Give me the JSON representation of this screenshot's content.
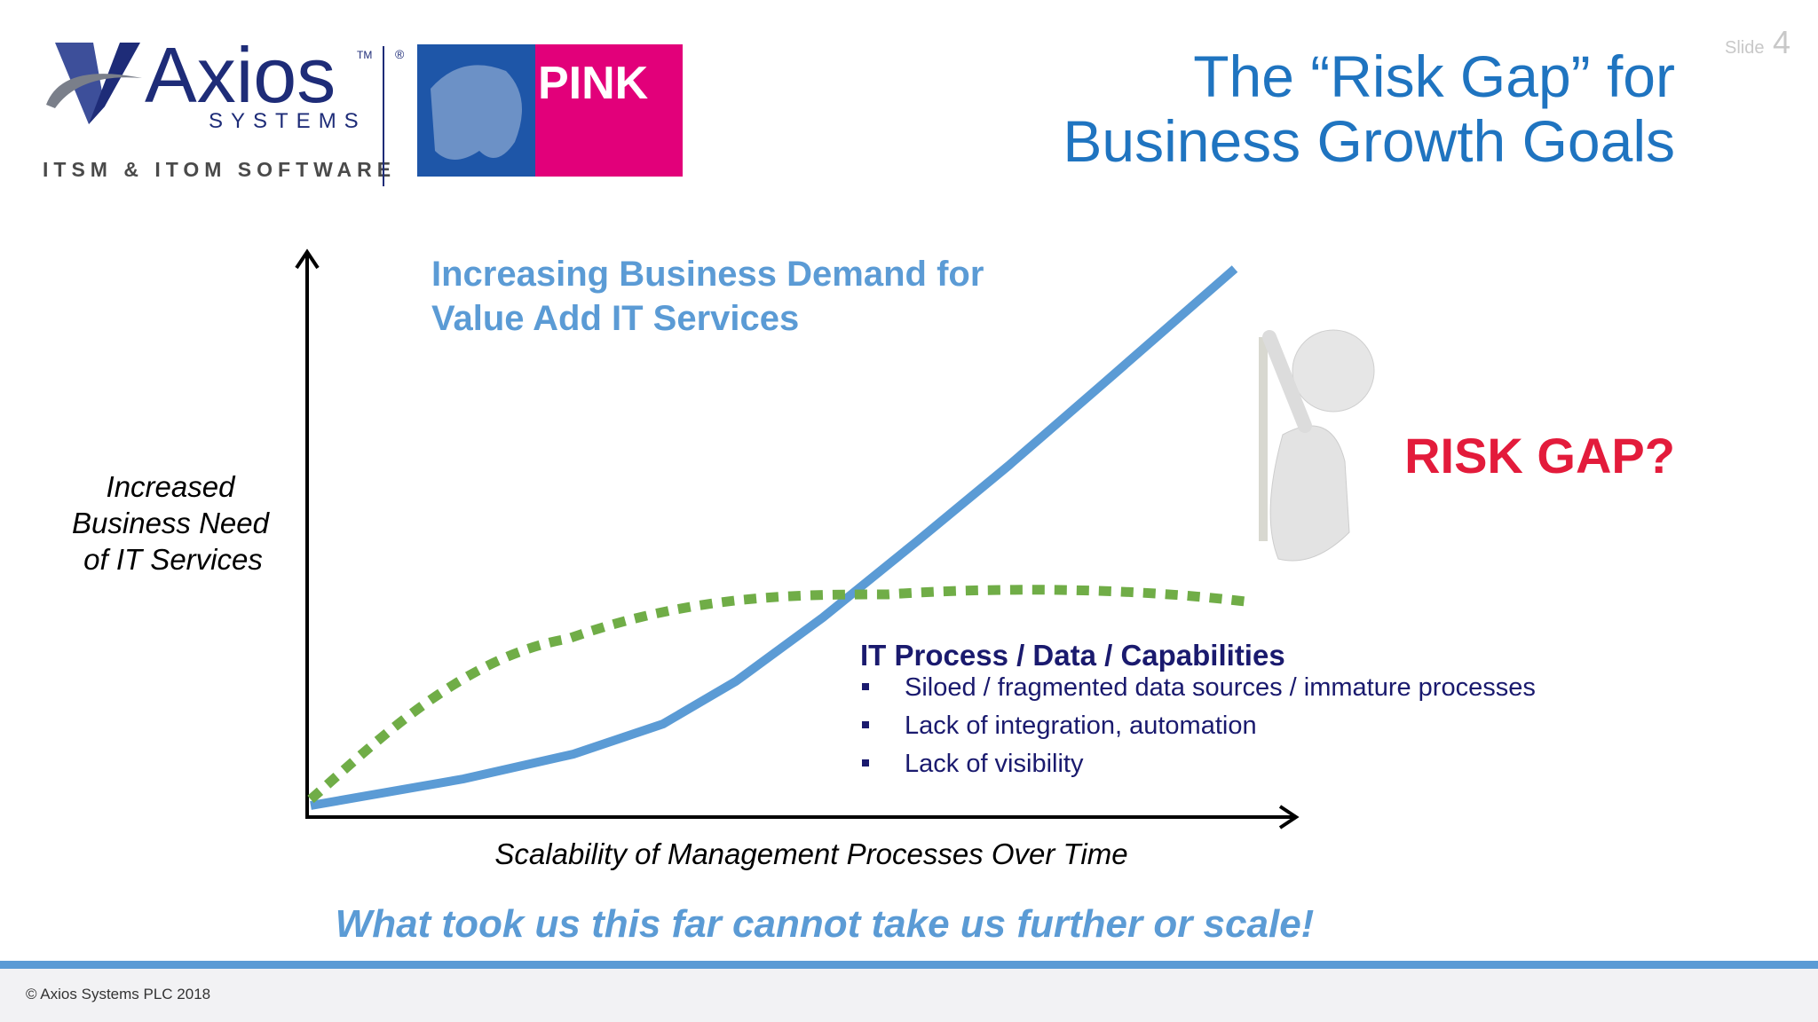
{
  "logo": {
    "name": "Axios",
    "trademark": "TM",
    "registered": "®",
    "sub": "SYSTEMS",
    "tagline": "ITSM & ITOM SOFTWARE",
    "partner": "PINK"
  },
  "slide": {
    "label": "Slide",
    "number": "4"
  },
  "title": {
    "line1": "The “Risk Gap” for",
    "line2": "Business Growth Goals"
  },
  "diagram": {
    "demand": {
      "line1": "Increasing Business Demand for",
      "line2": "Value Add IT Services"
    },
    "y_label": {
      "line1": "Increased",
      "line2": "Business Need",
      "line3": "of IT Services"
    },
    "x_label": "Scalability of Management Processes Over Time",
    "gap": "RISK GAP?",
    "capabilities": {
      "heading": "IT Process / Data / Capabilities",
      "bullets": [
        "Siloed / fragmented data sources / immature processes",
        "Lack of integration, automation",
        "Lack of visibility"
      ]
    }
  },
  "tagline": "What took us this far cannot take us further or scale!",
  "footer": "© Axios Systems PLC 2018"
}
